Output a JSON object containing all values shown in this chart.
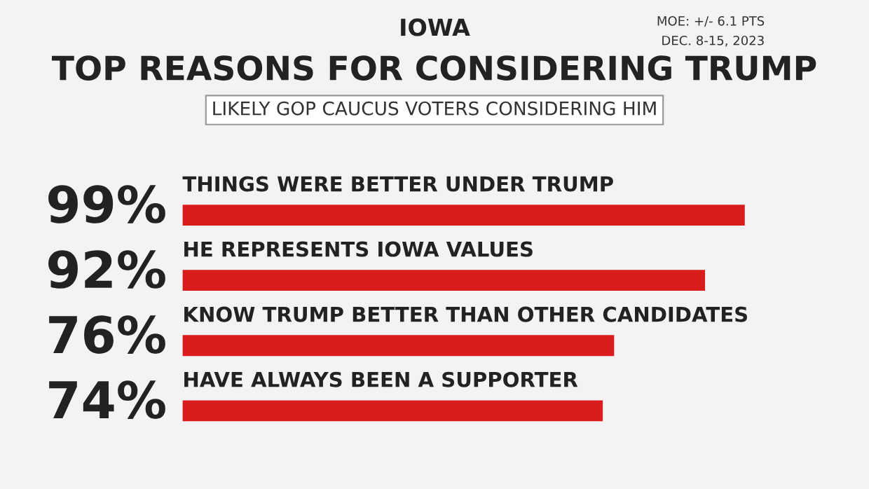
{
  "chart_data": {
    "type": "bar",
    "orientation": "horizontal",
    "title": "TOP REASONS FOR CONSIDERING TRUMP",
    "subtitle": "LIKELY GOP CAUCUS VOTERS CONSIDERING HIM",
    "annotations": [
      "IOWA",
      "MOE: +/- 6.1 PTS",
      "DEC. 8-15, 2023"
    ],
    "categories": [
      "THINGS WERE BETTER UNDER TRUMP",
      "HE REPRESENTS IOWA VALUES",
      "KNOW TRUMP BETTER THAN OTHER CANDIDATES",
      "HAVE ALWAYS BEEN A SUPPORTER"
    ],
    "values": [
      99,
      92,
      76,
      74
    ],
    "value_labels": [
      "99%",
      "92%",
      "76%",
      "74%"
    ],
    "color": "#d91c1c"
  }
}
